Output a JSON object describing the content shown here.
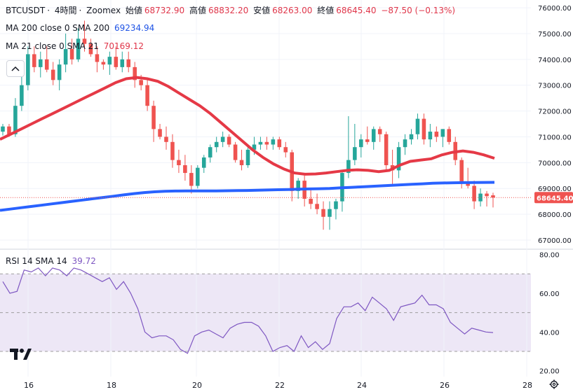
{
  "header": {
    "symbol": "BTCUSDT",
    "interval": "4時間",
    "exchange": "Zoomex",
    "open_label": "始値",
    "open_value": "68732.90",
    "high_label": "高値",
    "high_value": "68832.20",
    "low_label": "安値",
    "low_value": "68263.00",
    "close_label": "終値",
    "close_value": "68645.40",
    "change": "−87.50 (−0.13%)"
  },
  "indicators": {
    "ma200_label": "MA 200 close 0 SMA 200",
    "ma200_value": "69234.94",
    "ma21_label": "MA 21 close 0 SMA 21",
    "ma21_value": "70169.12",
    "rsi_label": "RSI 14 SMA 14",
    "rsi_value": "39.72",
    "collapse_icon": "chevron-up-icon"
  },
  "price_badge": "68645.40",
  "colors": {
    "up": "#26a69a",
    "down": "#ef5350",
    "ma200": "#2962ff",
    "ma21": "#e53946",
    "rsi": "#7e57c2",
    "rsi_band": "#ede7f6"
  },
  "chart_data": [
    {
      "type": "candlestick",
      "title": "BTCUSDT 4時間 Zoomex",
      "y_axis_ticks": [
        "76000.00",
        "75000.00",
        "74000.00",
        "73000.00",
        "72000.00",
        "71000.00",
        "70000.00",
        "69000.00",
        "68000.00",
        "67000.00"
      ],
      "x_axis_ticks": [
        "16",
        "18",
        "20",
        "22",
        "24",
        "26",
        "28"
      ],
      "ylim": [
        66700,
        76300
      ],
      "candles": [
        [
          71200,
          71500,
          71050,
          71400
        ],
        [
          71400,
          71500,
          71000,
          71100
        ],
        [
          71100,
          72500,
          71000,
          72200
        ],
        [
          72200,
          73600,
          72000,
          73000
        ],
        [
          73000,
          74500,
          72800,
          74200
        ],
        [
          74200,
          74500,
          73500,
          73700
        ],
        [
          73700,
          74300,
          73300,
          74000
        ],
        [
          74000,
          74500,
          73500,
          73600
        ],
        [
          73600,
          73900,
          73000,
          73200
        ],
        [
          73200,
          74000,
          72800,
          73800
        ],
        [
          73800,
          75000,
          73500,
          74400
        ],
        [
          74400,
          74800,
          73800,
          74000
        ],
        [
          74000,
          75200,
          73900,
          74800
        ],
        [
          74800,
          75500,
          74300,
          74600
        ],
        [
          74600,
          74800,
          74100,
          74200
        ],
        [
          74200,
          74500,
          73500,
          73900
        ],
        [
          73900,
          74000,
          73600,
          73800
        ],
        [
          73800,
          74300,
          73400,
          74100
        ],
        [
          74100,
          74500,
          73600,
          73700
        ],
        [
          73700,
          74300,
          73500,
          74000
        ],
        [
          74000,
          74300,
          73500,
          73700
        ],
        [
          73700,
          73900,
          72900,
          73200
        ],
        [
          73200,
          73400,
          72800,
          73000
        ],
        [
          73000,
          73200,
          72000,
          72200
        ],
        [
          72200,
          72400,
          70800,
          71300
        ],
        [
          71300,
          71500,
          70900,
          71000
        ],
        [
          71000,
          71400,
          70500,
          70800
        ],
        [
          70800,
          71100,
          69800,
          70100
        ],
        [
          70100,
          70500,
          69600,
          69900
        ],
        [
          69900,
          70300,
          69300,
          69600
        ],
        [
          69600,
          69900,
          68800,
          69100
        ],
        [
          69100,
          69900,
          69000,
          69800
        ],
        [
          69800,
          70300,
          69600,
          70200
        ],
        [
          70200,
          70700,
          70000,
          70600
        ],
        [
          70600,
          71000,
          70400,
          70800
        ],
        [
          70800,
          71200,
          70600,
          71000
        ],
        [
          71000,
          71100,
          70600,
          70700
        ],
        [
          70700,
          70800,
          70000,
          70100
        ],
        [
          70100,
          70500,
          69700,
          69900
        ],
        [
          69900,
          70700,
          69800,
          70500
        ],
        [
          70500,
          71000,
          70300,
          70700
        ],
        [
          70700,
          71000,
          70500,
          70800
        ],
        [
          70800,
          71000,
          70500,
          70700
        ],
        [
          70700,
          71000,
          70500,
          70900
        ],
        [
          70900,
          71000,
          70500,
          70600
        ],
        [
          70600,
          70800,
          70200,
          70400
        ],
        [
          70400,
          70500,
          68500,
          68900
        ],
        [
          68900,
          69400,
          68600,
          69300
        ],
        [
          69300,
          69500,
          68300,
          68600
        ],
        [
          68600,
          69000,
          68200,
          68400
        ],
        [
          68400,
          68800,
          68000,
          68200
        ],
        [
          68200,
          68500,
          67400,
          67900
        ],
        [
          67900,
          68500,
          67400,
          68200
        ],
        [
          68200,
          68600,
          67800,
          68500
        ],
        [
          68500,
          69700,
          68100,
          69600
        ],
        [
          69600,
          71800,
          69400,
          70100
        ],
        [
          70100,
          71500,
          69900,
          70600
        ],
        [
          70600,
          71100,
          70200,
          70900
        ],
        [
          70900,
          71400,
          70700,
          70800
        ],
        [
          70800,
          71400,
          70500,
          71300
        ],
        [
          71300,
          71400,
          70800,
          71100
        ],
        [
          71100,
          71200,
          69700,
          69900
        ],
        [
          69900,
          70500,
          69100,
          69700
        ],
        [
          69700,
          70800,
          69400,
          70600
        ],
        [
          70600,
          71100,
          70300,
          70900
        ],
        [
          70900,
          71300,
          70700,
          71100
        ],
        [
          71100,
          71900,
          70900,
          71700
        ],
        [
          71700,
          71900,
          70700,
          70900
        ],
        [
          70900,
          71500,
          70600,
          71200
        ],
        [
          71200,
          71400,
          70800,
          71000
        ],
        [
          71000,
          71300,
          70600,
          71300
        ],
        [
          71300,
          71400,
          70700,
          70800
        ],
        [
          70800,
          71000,
          69900,
          70100
        ],
        [
          70100,
          70200,
          69000,
          69200
        ],
        [
          69200,
          69800,
          69000,
          69100
        ],
        [
          69100,
          69300,
          68200,
          68500
        ],
        [
          68500,
          69000,
          68300,
          68800
        ],
        [
          68800,
          68900,
          68300,
          68700
        ],
        [
          68732.9,
          68832.2,
          68263,
          68645.4
        ]
      ],
      "ma200": [
        68150,
        68200,
        68250,
        68300,
        68350,
        68400,
        68450,
        68500,
        68550,
        68600,
        68650,
        68700,
        68750,
        68800,
        68840,
        68870,
        68890,
        68900,
        68905,
        68905,
        68905,
        68905,
        68910,
        68915,
        68920,
        68930,
        68940,
        68950,
        68960,
        68970,
        68980,
        68990,
        69000,
        69020,
        69040,
        69060,
        69080,
        69100,
        69120,
        69140,
        69160,
        69180,
        69200,
        69210,
        69220,
        69225,
        69230,
        69233,
        69234.94
      ],
      "ma21": [
        70900,
        71100,
        71300,
        71500,
        71700,
        71900,
        72100,
        72300,
        72500,
        72700,
        72900,
        73100,
        73250,
        73300,
        73250,
        73150,
        72950,
        72700,
        72450,
        72200,
        71900,
        71550,
        71200,
        70850,
        70500,
        70200,
        69950,
        69750,
        69600,
        69550,
        69560,
        69600,
        69650,
        69700,
        69720,
        69700,
        69650,
        69700,
        69900,
        70050,
        70100,
        70150,
        70300,
        70400,
        70450,
        70400,
        70300,
        70169.12
      ],
      "last_price": 68645.4
    },
    {
      "type": "line",
      "title": "RSI 14 SMA 14",
      "y_axis_ticks": [
        "80.00",
        "60.00",
        "40.00",
        "20.00"
      ],
      "ylim": [
        17,
        82
      ],
      "bands": [
        30,
        50,
        70
      ],
      "values": [
        66,
        60,
        61,
        72,
        71,
        73,
        69,
        73,
        72,
        69,
        73,
        72,
        70,
        68,
        66,
        68,
        62,
        66,
        60,
        52,
        40,
        37,
        38,
        38,
        36,
        31,
        29,
        38,
        40,
        41,
        39,
        37,
        42,
        44,
        45,
        45,
        43,
        38,
        30,
        32,
        33,
        30,
        38,
        32,
        35,
        31,
        34,
        47,
        53,
        53,
        55,
        51,
        58,
        55,
        52,
        46,
        53,
        54,
        55,
        59,
        54,
        54,
        52,
        45,
        42,
        39,
        42,
        41,
        40,
        39.72
      ],
      "last_value": 39.72
    }
  ]
}
